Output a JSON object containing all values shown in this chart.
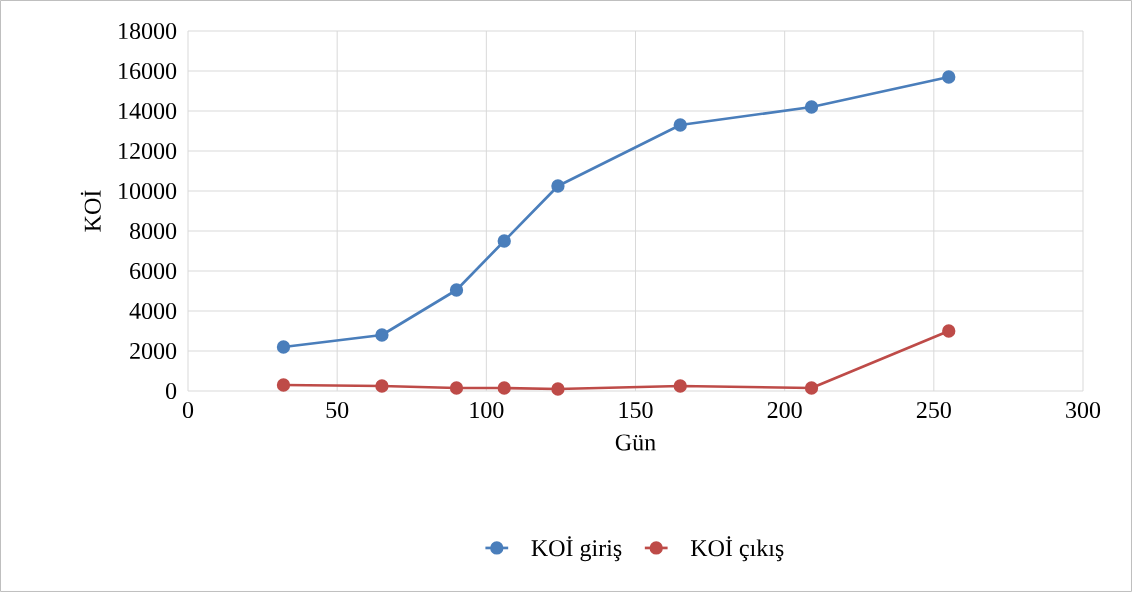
{
  "chart_data": {
    "type": "line",
    "xlabel": "Gün",
    "ylabel": "KOİ",
    "xlim": [
      0,
      300
    ],
    "ylim": [
      0,
      18000
    ],
    "xticks": [
      0,
      50,
      100,
      150,
      200,
      250,
      300
    ],
    "yticks": [
      0,
      2000,
      4000,
      6000,
      8000,
      10000,
      12000,
      14000,
      16000,
      18000
    ],
    "grid": true,
    "legend": "bottom",
    "marker": "circle",
    "line_style": "solid",
    "series": [
      {
        "name": "KOİ giriş",
        "color": "#4a7ebb",
        "x": [
          32,
          65,
          90,
          106,
          124,
          165,
          209,
          255
        ],
        "values": [
          2200,
          2800,
          5050,
          7500,
          10250,
          13300,
          14200,
          15700
        ]
      },
      {
        "name": "KOİ çıkış",
        "color": "#be4b48",
        "x": [
          32,
          65,
          90,
          106,
          124,
          165,
          209,
          255
        ],
        "values": [
          300,
          250,
          150,
          150,
          100,
          250,
          150,
          3000
        ]
      }
    ]
  }
}
